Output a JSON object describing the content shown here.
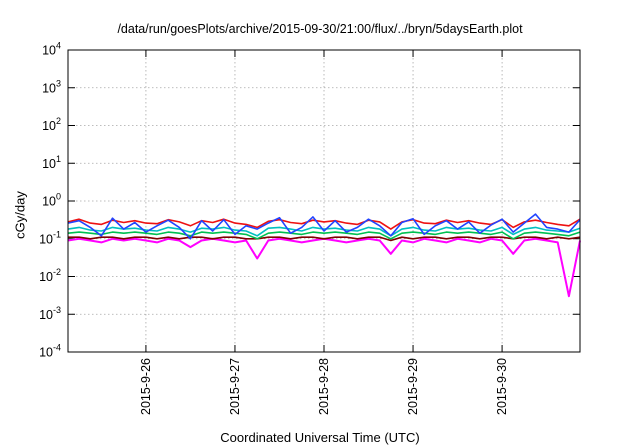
{
  "chart_data": {
    "type": "line",
    "title": "/data/run/goesPlots/archive/2015-09-30/21:00/flux/../bryn/5daysEarth.plot",
    "xlabel": "Coordinated Universal Time (UTC)",
    "ylabel": "cGy/day",
    "yscale": "log",
    "ylim": [
      0.0001,
      10000
    ],
    "xlim": [
      "2015-09-25T03:00",
      "2015-09-30T21:00"
    ],
    "yticks": [
      {
        "base": "10",
        "exp": "4"
      },
      {
        "base": "10",
        "exp": "3"
      },
      {
        "base": "10",
        "exp": "2"
      },
      {
        "base": "10",
        "exp": "1"
      },
      {
        "base": "10",
        "exp": "0"
      },
      {
        "base": "10",
        "exp": "-1"
      },
      {
        "base": "10",
        "exp": "-2"
      },
      {
        "base": "10",
        "exp": "-3"
      },
      {
        "base": "10",
        "exp": "-4"
      }
    ],
    "xticks": [
      {
        "label": "2015-9-26",
        "t": "2015-09-26T00:00"
      },
      {
        "label": "2015-9-27",
        "t": "2015-09-27T00:00"
      },
      {
        "label": "2015-9-28",
        "t": "2015-09-28T00:00"
      },
      {
        "label": "2015-9-29",
        "t": "2015-09-29T00:00"
      },
      {
        "label": "2015-9-30",
        "t": "2015-09-30T00:00"
      }
    ],
    "grid": true,
    "legend": "none",
    "x": [
      "2015-09-25T03:00",
      "2015-09-25T06:00",
      "2015-09-25T09:00",
      "2015-09-25T12:00",
      "2015-09-25T15:00",
      "2015-09-25T18:00",
      "2015-09-25T21:00",
      "2015-09-26T00:00",
      "2015-09-26T03:00",
      "2015-09-26T06:00",
      "2015-09-26T09:00",
      "2015-09-26T12:00",
      "2015-09-26T15:00",
      "2015-09-26T18:00",
      "2015-09-26T21:00",
      "2015-09-27T00:00",
      "2015-09-27T03:00",
      "2015-09-27T06:00",
      "2015-09-27T09:00",
      "2015-09-27T12:00",
      "2015-09-27T15:00",
      "2015-09-27T18:00",
      "2015-09-27T21:00",
      "2015-09-28T00:00",
      "2015-09-28T03:00",
      "2015-09-28T06:00",
      "2015-09-28T09:00",
      "2015-09-28T12:00",
      "2015-09-28T15:00",
      "2015-09-28T18:00",
      "2015-09-28T21:00",
      "2015-09-29T00:00",
      "2015-09-29T03:00",
      "2015-09-29T06:00",
      "2015-09-29T09:00",
      "2015-09-29T12:00",
      "2015-09-29T15:00",
      "2015-09-29T18:00",
      "2015-09-29T21:00",
      "2015-09-30T00:00",
      "2015-09-30T03:00",
      "2015-09-30T06:00",
      "2015-09-30T09:00",
      "2015-09-30T12:00",
      "2015-09-30T15:00",
      "2015-09-30T18:00",
      "2015-09-30T21:00"
    ],
    "series": [
      {
        "color": "#ff00ff",
        "values": [
          0.09,
          0.1,
          0.09,
          0.08,
          0.1,
          0.09,
          0.1,
          0.09,
          0.08,
          0.1,
          0.09,
          0.06,
          0.09,
          0.1,
          0.09,
          0.08,
          0.09,
          0.03,
          0.09,
          0.1,
          0.09,
          0.08,
          0.09,
          0.1,
          0.09,
          0.08,
          0.09,
          0.1,
          0.09,
          0.04,
          0.09,
          0.08,
          0.1,
          0.09,
          0.08,
          0.1,
          0.09,
          0.08,
          0.1,
          0.09,
          0.04,
          0.09,
          0.1,
          0.09,
          0.08,
          0.003,
          0.09
        ]
      },
      {
        "color": "#7f0000",
        "values": [
          0.11,
          0.11,
          0.1,
          0.11,
          0.11,
          0.1,
          0.11,
          0.11,
          0.1,
          0.11,
          0.1,
          0.11,
          0.11,
          0.1,
          0.11,
          0.11,
          0.1,
          0.1,
          0.11,
          0.11,
          0.1,
          0.11,
          0.11,
          0.1,
          0.11,
          0.11,
          0.1,
          0.11,
          0.11,
          0.09,
          0.11,
          0.1,
          0.11,
          0.11,
          0.1,
          0.11,
          0.11,
          0.1,
          0.11,
          0.11,
          0.1,
          0.11,
          0.11,
          0.1,
          0.11,
          0.1,
          0.11
        ]
      },
      {
        "color": "#00c050",
        "values": [
          0.14,
          0.15,
          0.14,
          0.13,
          0.15,
          0.14,
          0.15,
          0.14,
          0.13,
          0.15,
          0.14,
          0.12,
          0.15,
          0.14,
          0.15,
          0.14,
          0.13,
          0.1,
          0.14,
          0.15,
          0.14,
          0.13,
          0.15,
          0.14,
          0.15,
          0.14,
          0.13,
          0.15,
          0.14,
          0.1,
          0.14,
          0.15,
          0.14,
          0.13,
          0.15,
          0.14,
          0.15,
          0.14,
          0.13,
          0.15,
          0.1,
          0.14,
          0.15,
          0.14,
          0.13,
          0.12,
          0.15
        ]
      },
      {
        "color": "#00c0c0",
        "values": [
          0.18,
          0.2,
          0.17,
          0.16,
          0.2,
          0.18,
          0.19,
          0.17,
          0.16,
          0.2,
          0.18,
          0.15,
          0.19,
          0.18,
          0.2,
          0.17,
          0.16,
          0.12,
          0.19,
          0.2,
          0.18,
          0.16,
          0.2,
          0.18,
          0.19,
          0.17,
          0.16,
          0.2,
          0.18,
          0.12,
          0.18,
          0.2,
          0.17,
          0.16,
          0.2,
          0.18,
          0.19,
          0.17,
          0.16,
          0.2,
          0.13,
          0.18,
          0.2,
          0.17,
          0.16,
          0.15,
          0.19
        ]
      },
      {
        "color": "#ee1111",
        "values": [
          0.28,
          0.33,
          0.26,
          0.24,
          0.31,
          0.27,
          0.3,
          0.26,
          0.25,
          0.32,
          0.28,
          0.22,
          0.3,
          0.27,
          0.33,
          0.26,
          0.24,
          0.2,
          0.29,
          0.32,
          0.27,
          0.25,
          0.31,
          0.28,
          0.3,
          0.26,
          0.24,
          0.31,
          0.28,
          0.18,
          0.28,
          0.32,
          0.26,
          0.25,
          0.31,
          0.27,
          0.3,
          0.26,
          0.24,
          0.32,
          0.2,
          0.28,
          0.31,
          0.27,
          0.24,
          0.22,
          0.33
        ]
      },
      {
        "color": "#2244ff",
        "values": [
          0.26,
          0.3,
          0.2,
          0.12,
          0.35,
          0.18,
          0.27,
          0.15,
          0.22,
          0.31,
          0.2,
          0.1,
          0.3,
          0.16,
          0.32,
          0.13,
          0.22,
          0.18,
          0.26,
          0.36,
          0.14,
          0.2,
          0.38,
          0.16,
          0.3,
          0.15,
          0.2,
          0.33,
          0.22,
          0.12,
          0.27,
          0.34,
          0.13,
          0.22,
          0.3,
          0.18,
          0.28,
          0.14,
          0.23,
          0.33,
          0.15,
          0.26,
          0.45,
          0.2,
          0.18,
          0.15,
          0.32
        ]
      }
    ]
  }
}
